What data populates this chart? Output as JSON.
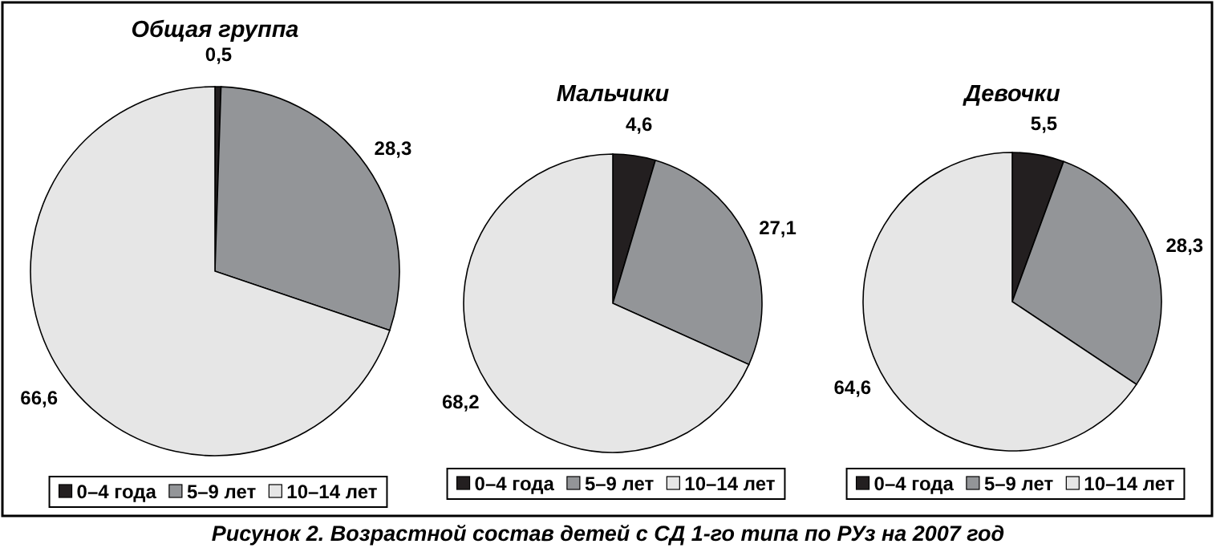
{
  "chart_data": [
    {
      "type": "pie",
      "title": "Общая группа",
      "categories": [
        "0–4 года",
        "5–9 лет",
        "10–14 лет"
      ],
      "values": [
        0.5,
        28.3,
        66.6
      ],
      "value_labels": [
        "0,5",
        "28,3",
        "66,6"
      ],
      "colors": [
        "#231f20",
        "#939598",
        "#e6e6e6"
      ],
      "legend": "bottom",
      "annotations": [
        "Рисунок 2. Возрастной состав детей с СД 1-го типа по РУз на 2007 год"
      ]
    },
    {
      "type": "pie",
      "title": "Мальчики",
      "categories": [
        "0–4 года",
        "5–9 лет",
        "10–14 лет"
      ],
      "values": [
        4.6,
        27.1,
        68.2
      ],
      "value_labels": [
        "4,6",
        "27,1",
        "68,2"
      ],
      "colors": [
        "#231f20",
        "#939598",
        "#e6e6e6"
      ],
      "legend": "bottom"
    },
    {
      "type": "pie",
      "title": "Девочки",
      "categories": [
        "0–4 года",
        "5–9 лет",
        "10–14 лет"
      ],
      "values": [
        5.5,
        28.3,
        64.6
      ],
      "value_labels": [
        "5,5",
        "28,3",
        "64,6"
      ],
      "colors": [
        "#231f20",
        "#939598",
        "#e6e6e6"
      ],
      "legend": "bottom"
    }
  ]
}
